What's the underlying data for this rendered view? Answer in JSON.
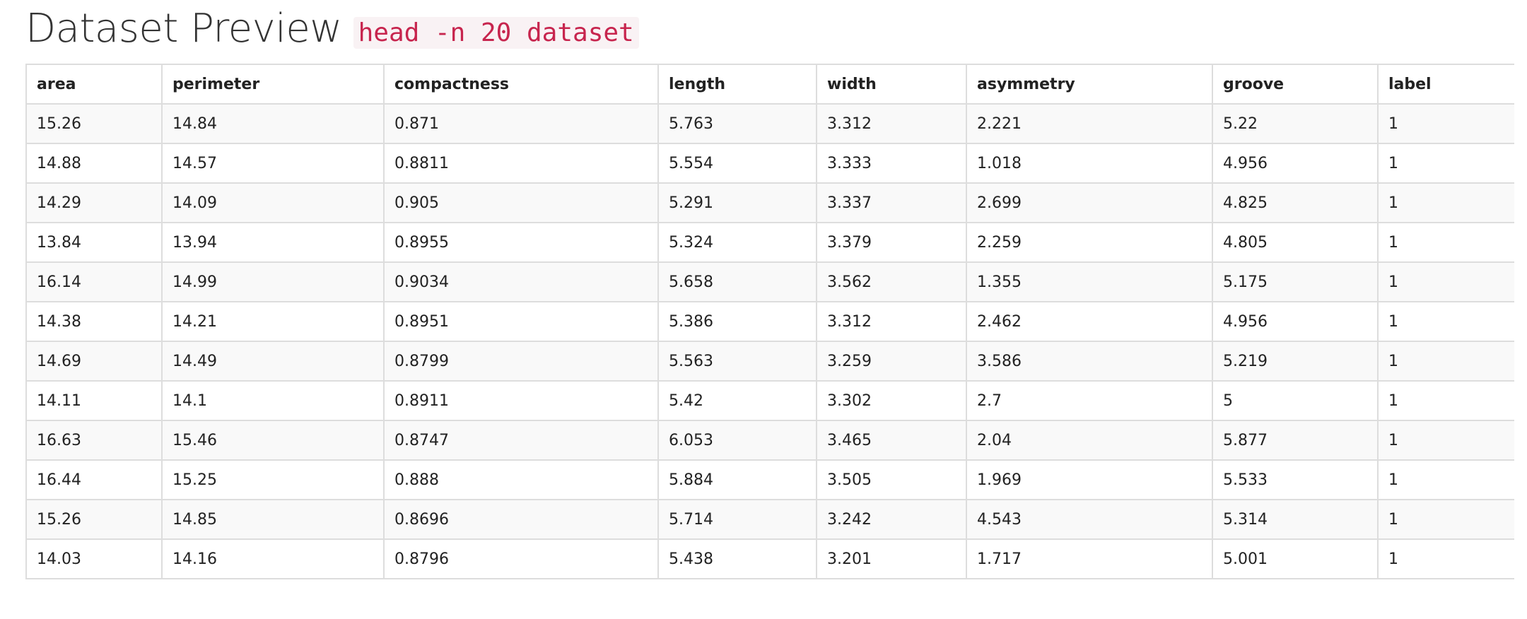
{
  "header": {
    "title": "Dataset Preview",
    "command": "head -n 20 dataset"
  },
  "table": {
    "columns": [
      "area",
      "perimeter",
      "compactness",
      "length",
      "width",
      "asymmetry",
      "groove",
      "label"
    ],
    "rows": [
      [
        "15.26",
        "14.84",
        "0.871",
        "5.763",
        "3.312",
        "2.221",
        "5.22",
        "1"
      ],
      [
        "14.88",
        "14.57",
        "0.8811",
        "5.554",
        "3.333",
        "1.018",
        "4.956",
        "1"
      ],
      [
        "14.29",
        "14.09",
        "0.905",
        "5.291",
        "3.337",
        "2.699",
        "4.825",
        "1"
      ],
      [
        "13.84",
        "13.94",
        "0.8955",
        "5.324",
        "3.379",
        "2.259",
        "4.805",
        "1"
      ],
      [
        "16.14",
        "14.99",
        "0.9034",
        "5.658",
        "3.562",
        "1.355",
        "5.175",
        "1"
      ],
      [
        "14.38",
        "14.21",
        "0.8951",
        "5.386",
        "3.312",
        "2.462",
        "4.956",
        "1"
      ],
      [
        "14.69",
        "14.49",
        "0.8799",
        "5.563",
        "3.259",
        "3.586",
        "5.219",
        "1"
      ],
      [
        "14.11",
        "14.1",
        "0.8911",
        "5.42",
        "3.302",
        "2.7",
        "5",
        "1"
      ],
      [
        "16.63",
        "15.46",
        "0.8747",
        "6.053",
        "3.465",
        "2.04",
        "5.877",
        "1"
      ],
      [
        "16.44",
        "15.25",
        "0.888",
        "5.884",
        "3.505",
        "1.969",
        "5.533",
        "1"
      ],
      [
        "15.26",
        "14.85",
        "0.8696",
        "5.714",
        "3.242",
        "4.543",
        "5.314",
        "1"
      ],
      [
        "14.03",
        "14.16",
        "0.8796",
        "5.438",
        "3.201",
        "1.717",
        "5.001",
        "1"
      ]
    ]
  }
}
